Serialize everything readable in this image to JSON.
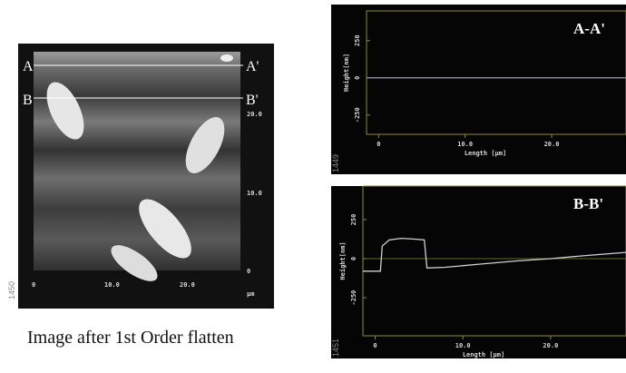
{
  "image": {
    "markers": {
      "a": "A",
      "a_prime": "A'",
      "b": "B",
      "b_prime": "B'"
    },
    "y_ticks": [
      "20.0",
      "10.0",
      "0"
    ],
    "unit": "µm",
    "x_ticks": [
      "0",
      "10.0",
      "20.0"
    ],
    "side_label": "1450"
  },
  "caption": "Image after 1st Order flatten",
  "chart_data": [
    {
      "type": "line",
      "title": "A-A'",
      "x_label": "Length [µm]",
      "y_label": "Height[nm]",
      "side_label": "1449",
      "x": [
        -1.4,
        2,
        6,
        10,
        14,
        18,
        22,
        26,
        28.6
      ],
      "values": [
        0,
        0,
        0,
        0,
        0,
        0,
        0,
        0,
        0
      ],
      "color": "#8a8aa0",
      "xlim": [
        -1.4,
        28.6
      ],
      "ylim": [
        -380,
        450
      ],
      "xticks": [
        0,
        {
          "value": 10,
          "label": "10.0"
        },
        {
          "value": 20,
          "label": "20.0"
        }
      ],
      "yticks": [
        250,
        0,
        -250
      ]
    },
    {
      "type": "line",
      "title": "B-B'",
      "x_label": "Length [µm]",
      "y_label": "Height[nm]",
      "side_label": "1451",
      "x": [
        -1.4,
        0.6,
        0.8,
        1.6,
        3,
        4.5,
        5.6,
        5.9,
        8,
        12,
        16,
        20,
        24,
        28.6
      ],
      "values": [
        -80,
        -80,
        80,
        120,
        130,
        125,
        120,
        -60,
        -55,
        -35,
        -15,
        0,
        20,
        40
      ],
      "color": "#d0d0d0",
      "xlim": [
        -1.4,
        28.6
      ],
      "ylim": [
        -494,
        465
      ],
      "xticks": [
        0,
        {
          "value": 10,
          "label": "10.0"
        },
        {
          "value": 20,
          "label": "20.0"
        }
      ],
      "yticks": [
        250,
        0,
        -250
      ]
    }
  ]
}
